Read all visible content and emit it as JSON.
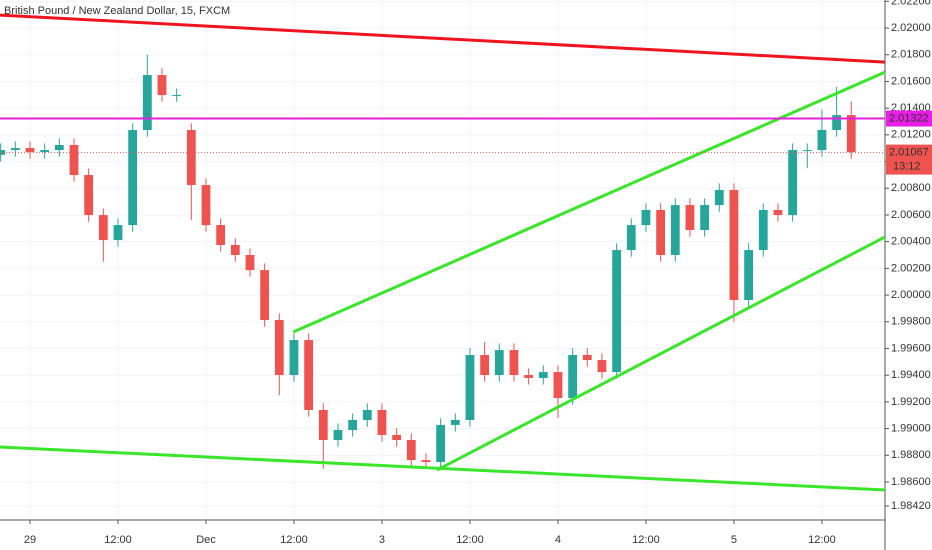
{
  "chart_data": {
    "type": "candlestick",
    "title": "British Pound / New Zealand Dollar, 15, FXCM",
    "x": [
      -4,
      -2,
      0,
      2,
      4,
      6,
      8,
      10,
      12,
      14,
      16,
      18,
      20,
      22,
      24,
      26,
      28,
      30,
      32,
      34,
      36,
      38,
      40,
      42,
      44,
      46,
      48,
      50,
      52,
      54,
      56,
      58,
      60,
      62,
      64,
      66,
      68,
      70,
      72,
      74,
      76,
      78,
      80,
      82,
      84,
      86,
      88,
      90,
      92,
      94,
      96,
      98,
      100,
      102,
      104,
      106,
      108,
      110,
      112
    ],
    "open": [
      2.0105,
      2.01086,
      2.01101,
      2.01071,
      2.01086,
      2.01124,
      2.00899,
      2.00599,
      2.00412,
      2.00524,
      2.01236,
      2.01648,
      2.01498,
      2.01236,
      2.00824,
      2.00524,
      2.00375,
      2.003,
      2.00187,
      1.99813,
      1.99401,
      1.99663,
      1.99139,
      1.98914,
      1.98989,
      1.99064,
      1.99139,
      1.98952,
      1.98914,
      1.98764,
      1.98749,
      1.99027,
      1.99064,
      1.99551,
      1.99401,
      1.99588,
      1.99401,
      1.99379,
      1.99423,
      1.99229,
      1.99551,
      1.99513,
      1.99423,
      2.00337,
      2.00524,
      2.00637,
      2.003,
      2.00674,
      2.00487,
      2.00674,
      2.00787,
      1.99963,
      2.00337,
      2.00637,
      2.00599,
      2.01086,
      2.01086,
      2.01236,
      2.01348
    ],
    "high": [
      2.01136,
      2.01151,
      2.01151,
      2.01136,
      2.01174,
      2.01174,
      2.00949,
      2.00649,
      2.00574,
      2.01286,
      2.018,
      2.01698,
      2.01548,
      2.01286,
      2.00874,
      2.00574,
      2.00425,
      2.0035,
      2.00237,
      1.99863,
      1.99713,
      1.99713,
      1.99189,
      1.99039,
      1.99114,
      1.99189,
      1.99189,
      1.99002,
      1.98964,
      1.98814,
      1.99077,
      1.99114,
      1.99601,
      1.9965,
      1.99638,
      1.99638,
      1.99451,
      1.99473,
      1.99473,
      1.99601,
      1.99601,
      1.99563,
      2.00387,
      2.00574,
      2.00687,
      2.00687,
      2.00724,
      2.00724,
      2.00724,
      2.00837,
      2.00837,
      2.00387,
      2.00687,
      2.00687,
      2.01136,
      2.01136,
      2.0139,
      2.0156,
      2.0145
    ],
    "low": [
      2.01,
      2.01036,
      2.01021,
      2.01021,
      2.01036,
      2.00849,
      2.00549,
      2.0025,
      2.00362,
      2.00474,
      2.01186,
      2.01448,
      2.01448,
      2.0056,
      2.00474,
      2.00325,
      2.0025,
      2.00137,
      1.99763,
      1.9925,
      1.99351,
      1.99089,
      1.987,
      1.98864,
      1.98939,
      1.99014,
      1.98902,
      1.98864,
      1.98714,
      1.98699,
      1.98699,
      1.98977,
      1.99014,
      1.99351,
      1.99351,
      1.99351,
      1.99329,
      1.99329,
      1.9908,
      1.99179,
      1.99463,
      1.99373,
      1.99373,
      2.00287,
      2.00474,
      2.0025,
      2.0025,
      2.00437,
      2.00437,
      2.00624,
      1.998,
      1.99913,
      2.00287,
      2.00549,
      2.00549,
      2.0095,
      2.01036,
      2.01186,
      2.01021
    ],
    "close": [
      2.01086,
      2.01101,
      2.01071,
      2.01086,
      2.01124,
      2.00899,
      2.00599,
      2.00412,
      2.00524,
      2.01236,
      2.01648,
      2.01498,
      2.01498,
      2.00824,
      2.00524,
      2.00375,
      2.003,
      2.00187,
      1.99813,
      1.99401,
      1.99663,
      1.99139,
      1.98914,
      1.98989,
      1.99064,
      1.99139,
      1.98952,
      1.98914,
      1.98764,
      1.98749,
      1.99027,
      1.99064,
      1.99551,
      1.99401,
      1.99588,
      1.99401,
      1.99379,
      1.99423,
      1.99229,
      1.99551,
      1.99513,
      1.99423,
      2.00337,
      2.00524,
      2.00637,
      2.003,
      2.00674,
      2.00487,
      2.00674,
      2.00787,
      1.99963,
      2.00337,
      2.00637,
      2.00599,
      2.01086,
      2.01086,
      2.01236,
      2.01348,
      2.01071
    ],
    "up_color": "#26a69a",
    "down_color": "#ef5350",
    "xlim": [
      -4.09,
      116.6
    ],
    "ylim": [
      1.98315,
      2.0221
    ],
    "xticks": [
      {
        "value": 0,
        "label": "29"
      },
      {
        "value": 12,
        "label": "12:00"
      },
      {
        "value": 24,
        "label": "Dec"
      },
      {
        "value": 36,
        "label": "12:00"
      },
      {
        "value": 48,
        "label": "3"
      },
      {
        "value": 60,
        "label": "12:00"
      },
      {
        "value": 72,
        "label": "4"
      },
      {
        "value": 84,
        "label": "12:00"
      },
      {
        "value": 96,
        "label": "5"
      },
      {
        "value": 108,
        "label": "12:00"
      }
    ],
    "yticks": [
      {
        "value": 2.022,
        "label": "2.02200"
      },
      {
        "value": 2.02,
        "label": "2.02000"
      },
      {
        "value": 2.018,
        "label": "2.01800"
      },
      {
        "value": 2.016,
        "label": "2.01600"
      },
      {
        "value": 2.014,
        "label": "2.01400"
      },
      {
        "value": 2.012,
        "label": "2.01200"
      },
      {
        "value": 2.01,
        "label": "2.01000"
      },
      {
        "value": 2.008,
        "label": "2.00800"
      },
      {
        "value": 2.006,
        "label": "2.00600"
      },
      {
        "value": 2.004,
        "label": "2.00400"
      },
      {
        "value": 2.002,
        "label": "2.00200"
      },
      {
        "value": 2,
        "label": "2.00000"
      },
      {
        "value": 1.998,
        "label": "1.99800"
      },
      {
        "value": 1.996,
        "label": "1.99600"
      },
      {
        "value": 1.994,
        "label": "1.99400"
      },
      {
        "value": 1.992,
        "label": "1.99200"
      },
      {
        "value": 1.99,
        "label": "1.99000"
      },
      {
        "value": 1.988,
        "label": "1.98800"
      },
      {
        "value": 1.986,
        "label": "1.98600"
      },
      {
        "value": 1.9842,
        "label": "1.98420"
      }
    ],
    "grid": true,
    "trendlines": [
      {
        "color": "#f0141e",
        "x": [
          -4.09,
          116.6
        ],
        "y": [
          2.02097,
          2.01745
        ]
      },
      {
        "color": "#3ae62a",
        "x": [
          35.9,
          116.6
        ],
        "y": [
          1.99723,
          2.0167
        ]
      },
      {
        "color": "#3ae62a",
        "x": [
          55.5,
          116.6
        ],
        "y": [
          1.98689,
          2.00435
        ]
      },
      {
        "color": "#3ae62a",
        "x": [
          -4.09,
          116.6
        ],
        "y": [
          1.98862,
          1.9854
        ]
      }
    ],
    "hline": {
      "value": 2.01322,
      "label": "2.01322",
      "color": "#e91ee6"
    },
    "last_price": {
      "value": 2.01067,
      "label": "2.01067",
      "countdown": "13:12",
      "color": "#ef5350"
    }
  }
}
